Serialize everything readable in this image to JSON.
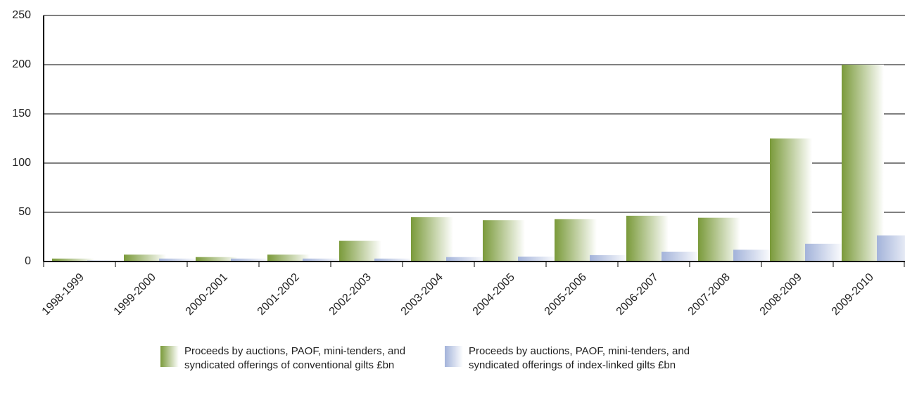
{
  "chart_data": {
    "type": "bar",
    "categories": [
      "1998-1999",
      "1999-2000",
      "2000-2001",
      "2001-2002",
      "2002-2003",
      "2003-2004",
      "2004-2005",
      "2005-2006",
      "2006-2007",
      "2007-2008",
      "2008-2009",
      "2009-2010"
    ],
    "series": [
      {
        "name": "Proceeds by auctions, PAOF, mini-tenders, and syndicated offerings of conventional gilts  £bn",
        "color": "#7a9a3a",
        "values": [
          3,
          7,
          4.5,
          7,
          21,
          45,
          42,
          43,
          46.5,
          44.5,
          125,
          200
        ]
      },
      {
        "name": "Proceeds by auctions, PAOF, mini-tenders, and syndicated offerings of index-linked gilts £bn",
        "color": "#a3b3da",
        "values": [
          1,
          3,
          3,
          3,
          3,
          4.5,
          5,
          6.5,
          10,
          12,
          18,
          26.5
        ]
      }
    ],
    "ylim": [
      0,
      250
    ],
    "yticks": [
      0,
      50,
      100,
      150,
      200,
      250
    ],
    "grid": true
  }
}
